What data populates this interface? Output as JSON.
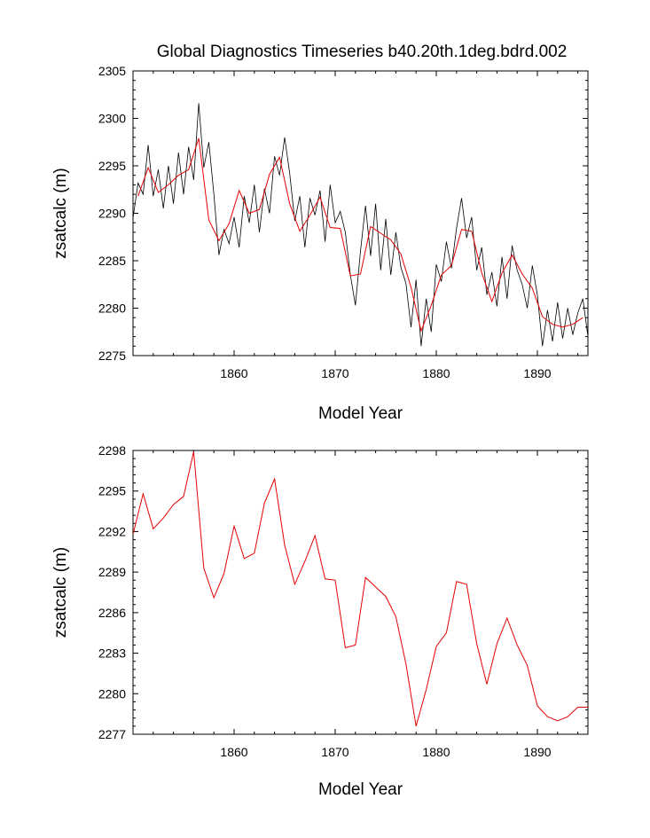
{
  "colors": {
    "monthly": "#000000",
    "annual": "#e60000",
    "axis": "#000000",
    "background": "#ffffff"
  },
  "chart_data": [
    {
      "type": "line",
      "title": "Global Diagnostics Timeseries b40.20th.1deg.bdrd.002",
      "xlabel": "Model Year",
      "ylabel": "zsatcalc (m)",
      "xlim": [
        1850,
        1895
      ],
      "ylim": [
        2275,
        2305
      ],
      "xticks": [
        1860,
        1870,
        1880,
        1890
      ],
      "xtick_labels": [
        "1860",
        "1870",
        "1880",
        "1890"
      ],
      "yticks": [
        2275,
        2280,
        2285,
        2290,
        2295,
        2300,
        2305
      ],
      "ytick_labels": [
        "2275",
        "2280",
        "2285",
        "2290",
        "2295",
        "2300",
        "2305"
      ],
      "series": [
        {
          "name": "monthly",
          "color": "#000000",
          "x": [
            1850.0,
            1850.5,
            1851.0,
            1851.5,
            1852.0,
            1852.5,
            1853.0,
            1853.5,
            1854.0,
            1854.5,
            1855.0,
            1855.5,
            1856.0,
            1856.5,
            1857.0,
            1857.5,
            1858.0,
            1858.5,
            1859.0,
            1859.5,
            1860.0,
            1860.5,
            1861.0,
            1861.5,
            1862.0,
            1862.5,
            1863.0,
            1863.5,
            1864.0,
            1864.5,
            1865.0,
            1865.5,
            1866.0,
            1866.5,
            1867.0,
            1867.5,
            1868.0,
            1868.5,
            1869.0,
            1869.5,
            1870.0,
            1870.5,
            1871.0,
            1871.5,
            1872.0,
            1872.5,
            1873.0,
            1873.5,
            1874.0,
            1874.5,
            1875.0,
            1875.5,
            1876.0,
            1876.5,
            1877.0,
            1877.5,
            1878.0,
            1878.5,
            1879.0,
            1879.5,
            1880.0,
            1880.5,
            1881.0,
            1881.5,
            1882.0,
            1882.5,
            1883.0,
            1883.5,
            1884.0,
            1884.5,
            1885.0,
            1885.5,
            1886.0,
            1886.5,
            1887.0,
            1887.5,
            1888.0,
            1888.5,
            1889.0,
            1889.5,
            1890.0,
            1890.5,
            1891.0,
            1891.5,
            1892.0,
            1892.5,
            1893.0,
            1893.5,
            1894.0,
            1894.5,
            1895.0
          ],
          "values": [
            2289.5,
            2293.2,
            2292.0,
            2297.2,
            2291.8,
            2294.6,
            2290.5,
            2295.0,
            2291.0,
            2296.4,
            2292.0,
            2297.0,
            2293.5,
            2301.6,
            2294.8,
            2297.5,
            2292.0,
            2285.6,
            2288.3,
            2286.8,
            2289.6,
            2286.4,
            2291.8,
            2289.0,
            2293.0,
            2288.0,
            2292.6,
            2290.0,
            2296.0,
            2294.0,
            2298.0,
            2294.2,
            2289.2,
            2291.8,
            2286.4,
            2291.6,
            2289.8,
            2292.4,
            2287.0,
            2293.0,
            2289.0,
            2290.2,
            2288.0,
            2283.5,
            2280.3,
            2286.0,
            2290.8,
            2285.5,
            2291.0,
            2284.0,
            2289.4,
            2283.5,
            2288.0,
            2284.3,
            2282.6,
            2278.0,
            2283.0,
            2276.0,
            2281.0,
            2277.5,
            2284.6,
            2282.8,
            2287.0,
            2284.2,
            2288.4,
            2291.6,
            2287.4,
            2289.6,
            2284.0,
            2286.4,
            2281.4,
            2283.8,
            2280.2,
            2285.4,
            2281.0,
            2286.6,
            2284.0,
            2282.5,
            2280.0,
            2284.5,
            2281.4,
            2276.0,
            2279.8,
            2276.5,
            2280.6,
            2276.8,
            2280.0,
            2277.2,
            2279.5,
            2281.0,
            2277.0
          ]
        },
        {
          "name": "annual",
          "color": "#e60000",
          "x": [
            1850.5,
            1851.5,
            1852.5,
            1853.5,
            1854.5,
            1855.5,
            1856.5,
            1857.5,
            1858.5,
            1859.5,
            1860.5,
            1861.5,
            1862.5,
            1863.5,
            1864.5,
            1865.5,
            1866.5,
            1867.5,
            1868.5,
            1869.5,
            1870.5,
            1871.5,
            1872.5,
            1873.5,
            1874.5,
            1875.5,
            1876.5,
            1877.5,
            1878.5,
            1879.5,
            1880.5,
            1881.5,
            1882.5,
            1883.5,
            1884.5,
            1885.5,
            1886.5,
            1887.5,
            1888.5,
            1889.5,
            1890.5,
            1891.5,
            1892.5,
            1893.5,
            1894.5
          ],
          "values": [
            2291.8,
            2294.8,
            2292.2,
            2293.0,
            2294.0,
            2294.6,
            2297.9,
            2289.3,
            2287.1,
            2288.9,
            2292.4,
            2290.0,
            2290.4,
            2294.1,
            2295.9,
            2291.0,
            2288.1,
            2289.8,
            2291.7,
            2288.5,
            2288.4,
            2283.4,
            2283.6,
            2288.6,
            2287.9,
            2287.2,
            2285.7,
            2282.2,
            2277.6,
            2280.3,
            2283.5,
            2284.5,
            2288.3,
            2288.1,
            2283.7,
            2280.7,
            2283.7,
            2285.6,
            2283.6,
            2282.1,
            2279.1,
            2278.3,
            2278.0,
            2278.3,
            2279.0
          ]
        }
      ]
    },
    {
      "type": "line",
      "title": "",
      "xlabel": "Model Year",
      "ylabel": "zsatcalc (m)",
      "xlim": [
        1850,
        1895
      ],
      "ylim": [
        2277,
        2298
      ],
      "xticks": [
        1860,
        1870,
        1880,
        1890
      ],
      "xtick_labels": [
        "1860",
        "1870",
        "1880",
        "1890"
      ],
      "yticks": [
        2277,
        2280,
        2283,
        2286,
        2289,
        2292,
        2295,
        2298
      ],
      "ytick_labels": [
        "2277",
        "2280",
        "2283",
        "2286",
        "2289",
        "2292",
        "2295",
        "2298"
      ],
      "series": [
        {
          "name": "annual",
          "color": "#e60000",
          "x": [
            1850.0,
            1851.0,
            1852.0,
            1853.0,
            1854.0,
            1855.0,
            1856.0,
            1857.0,
            1858.0,
            1859.0,
            1860.0,
            1861.0,
            1862.0,
            1863.0,
            1864.0,
            1865.0,
            1866.0,
            1867.0,
            1868.0,
            1869.0,
            1870.0,
            1871.0,
            1872.0,
            1873.0,
            1874.0,
            1875.0,
            1876.0,
            1877.0,
            1878.0,
            1879.0,
            1880.0,
            1881.0,
            1882.0,
            1883.0,
            1884.0,
            1885.0,
            1886.0,
            1887.0,
            1888.0,
            1889.0,
            1890.0,
            1891.0,
            1892.0,
            1893.0,
            1894.0,
            1895.0
          ],
          "values": [
            2291.8,
            2294.8,
            2292.2,
            2293.0,
            2294.0,
            2294.6,
            2297.9,
            2289.3,
            2287.1,
            2288.9,
            2292.4,
            2290.0,
            2290.4,
            2294.1,
            2295.9,
            2291.0,
            2288.1,
            2289.8,
            2291.7,
            2288.5,
            2288.4,
            2283.4,
            2283.6,
            2288.6,
            2287.9,
            2287.2,
            2285.7,
            2282.2,
            2277.6,
            2280.3,
            2283.5,
            2284.5,
            2288.3,
            2288.1,
            2283.7,
            2280.7,
            2283.7,
            2285.6,
            2283.6,
            2282.1,
            2279.1,
            2278.3,
            2278.0,
            2278.3,
            2279.0,
            2279.0
          ]
        }
      ]
    }
  ]
}
